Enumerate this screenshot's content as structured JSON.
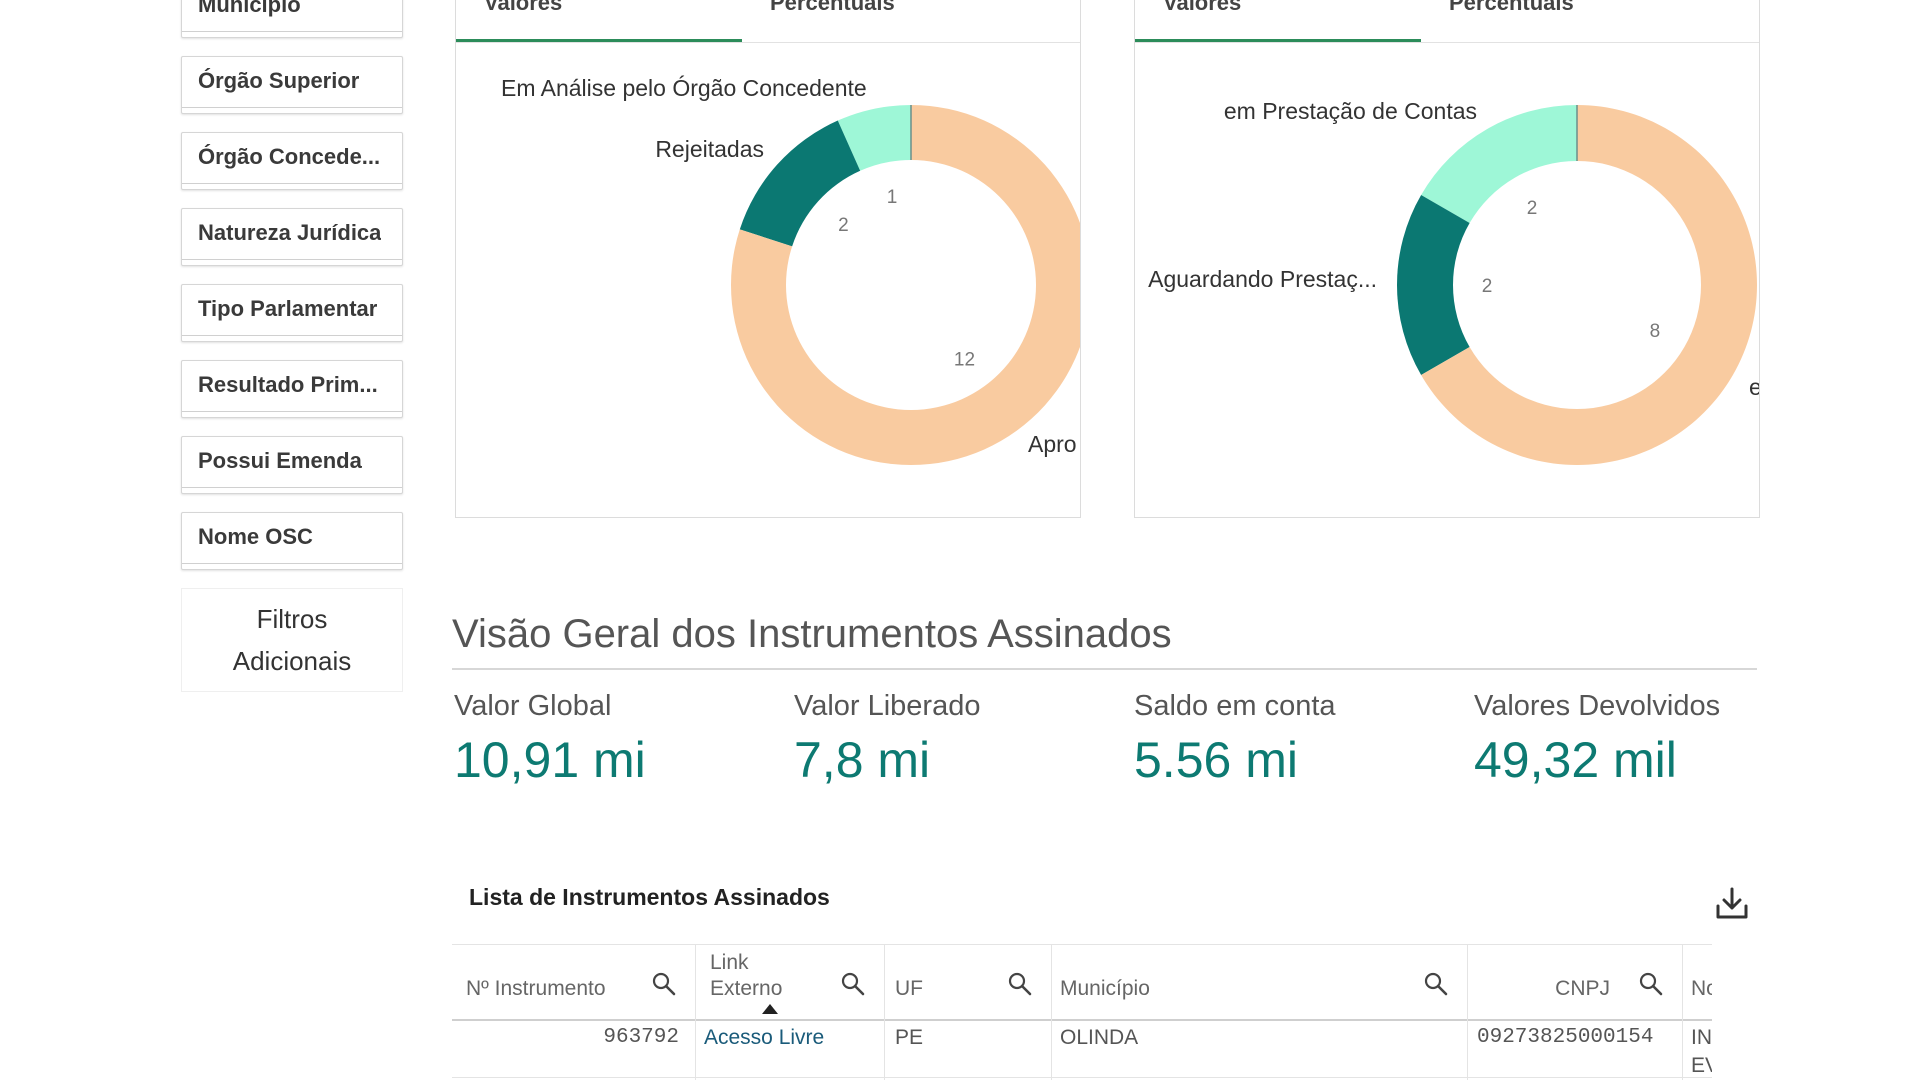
{
  "filters": {
    "items": [
      "Município",
      "Órgão Superior",
      "Órgão Concede...",
      "Natureza Jurídica",
      "Tipo Parlamentar",
      "Resultado Prim...",
      "Possui Emenda",
      "Nome OSC"
    ],
    "more_line1": "Filtros",
    "more_line2": "Adicionais"
  },
  "panel_left": {
    "tab_values": "Valores",
    "tab_percent": "Percentuais",
    "chart_data": {
      "type": "pie",
      "donut": true,
      "categories": [
        "Em Análise pelo Órgão Concedente",
        "Rejeitadas",
        "Apro"
      ],
      "values": [
        1,
        2,
        12
      ],
      "colors": [
        "#9ef7d7",
        "#0b7872",
        "#f9cba0"
      ],
      "value_labels": [
        "1",
        "2",
        "12"
      ]
    }
  },
  "panel_right": {
    "tab_values": "Valores",
    "tab_percent": "Percentuais",
    "chart_data": {
      "type": "pie",
      "donut": true,
      "categories": [
        "em Prestação de Contas",
        "Aguardando Prestaç...",
        "e"
      ],
      "values": [
        2,
        2,
        8
      ],
      "colors": [
        "#9ef7d7",
        "#0b7872",
        "#f9cba0"
      ],
      "value_labels": [
        "2",
        "2",
        "8"
      ]
    }
  },
  "overview": {
    "title": "Visão Geral dos Instrumentos Assinados",
    "kpis": [
      {
        "label": "Valor Global",
        "value": "10,91 mi"
      },
      {
        "label": "Valor Liberado",
        "value": "7,8 mi"
      },
      {
        "label": "Saldo em conta",
        "value": "5.56 mi"
      },
      {
        "label": "Valores Devolvidos",
        "value": "49,32 mil"
      }
    ]
  },
  "table": {
    "title": "Lista de Instrumentos Assinados",
    "headers": {
      "instrumento": "Nº Instrumento",
      "link_line1": "Link",
      "link_line2": "Externo",
      "uf": "UF",
      "municipio": "Município",
      "cnpj": "CNPJ",
      "nome": "Nom"
    },
    "row": {
      "instrumento": "963792",
      "link": "Acesso Livre",
      "uf": "PE",
      "municipio": "OLINDA",
      "cnpj": "09273825000154",
      "nome_line1": "INST",
      "nome_line2": "EVO"
    }
  }
}
